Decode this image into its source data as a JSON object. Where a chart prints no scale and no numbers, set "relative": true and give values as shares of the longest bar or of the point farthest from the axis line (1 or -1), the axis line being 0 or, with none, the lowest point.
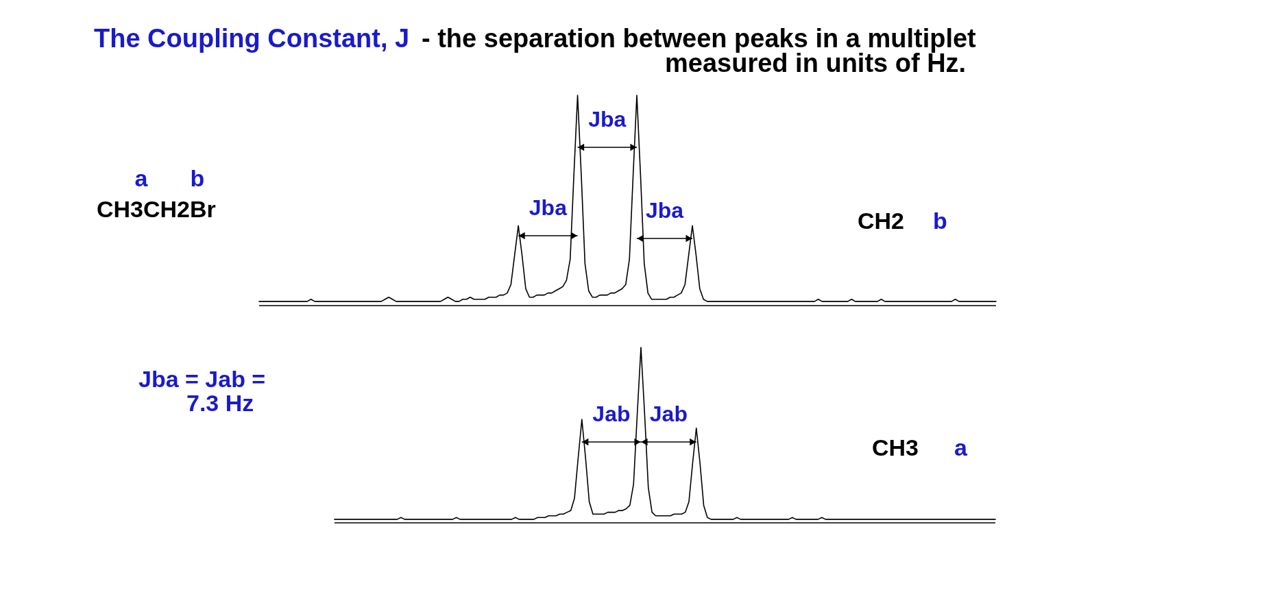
{
  "chart_data": [
    {
      "type": "line",
      "title": "The Coupling Constant, J",
      "subtitle": "- the separation between peaks in a multiplet\nmeasured in units of Hz.",
      "relative": true,
      "tick_labels": false,
      "color": "#000000",
      "categories": [
        null,
        null,
        null,
        null,
        null,
        null,
        null,
        null,
        null,
        null,
        null,
        null,
        null,
        null,
        null,
        null,
        null,
        null,
        null,
        null,
        null,
        null,
        null,
        null,
        null,
        null,
        null,
        null,
        null,
        null,
        null,
        null,
        null,
        null,
        null,
        null,
        null,
        null,
        null,
        null,
        null,
        null,
        null,
        null,
        null,
        null,
        null,
        null,
        null,
        null,
        null,
        null,
        null,
        null,
        null,
        null,
        null,
        null,
        null,
        null,
        null,
        null,
        null,
        null,
        null,
        null,
        null,
        null,
        null,
        null,
        null,
        null,
        null,
        null,
        null,
        null,
        null,
        null,
        null,
        null,
        null,
        null,
        null,
        null,
        null,
        null,
        null,
        null,
        null,
        null,
        null,
        null,
        null,
        null,
        null,
        null,
        null,
        null,
        null,
        null,
        null,
        null,
        null,
        null,
        null,
        null,
        null,
        null,
        null,
        null,
        null,
        null,
        null,
        null,
        null,
        null,
        null,
        null,
        null,
        null,
        null,
        null,
        null,
        null,
        null,
        null,
        null,
        null,
        null,
        null,
        null,
        null,
        null,
        null,
        null,
        null,
        null,
        null,
        null,
        null,
        null,
        null,
        null,
        null,
        null,
        null,
        null,
        null,
        null,
        null,
        null,
        null,
        null,
        null,
        null,
        null,
        null,
        null,
        null,
        null,
        null,
        null,
        null,
        null,
        null,
        null,
        null,
        null,
        null,
        null,
        null,
        null,
        null,
        null,
        null,
        null,
        null,
        null,
        null,
        null,
        null,
        null,
        null,
        null,
        null,
        null,
        null,
        null,
        null,
        null,
        null,
        null,
        null,
        null,
        null,
        null,
        null,
        null,
        null,
        null
      ],
      "values": [
        0.02,
        0.02,
        0.02,
        0.02,
        0.02,
        0.02,
        0.02,
        0.02,
        0.02,
        0.02,
        0.02,
        0.02,
        0.02,
        0.02,
        0.03,
        0.02,
        0.02,
        0.02,
        0.02,
        0.02,
        0.02,
        0.02,
        0.02,
        0.02,
        0.02,
        0.02,
        0.02,
        0.02,
        0.02,
        0.02,
        0.02,
        0.02,
        0.02,
        0.02,
        0.03,
        0.04,
        0.03,
        0.02,
        0.02,
        0.02,
        0.02,
        0.02,
        0.02,
        0.02,
        0.02,
        0.02,
        0.02,
        0.02,
        0.02,
        0.02,
        0.03,
        0.04,
        0.03,
        0.02,
        0.02,
        0.03,
        0.03,
        0.04,
        0.03,
        0.03,
        0.03,
        0.03,
        0.04,
        0.04,
        0.04,
        0.05,
        0.05,
        0.06,
        0.1,
        0.24,
        0.38,
        0.24,
        0.08,
        0.04,
        0.04,
        0.05,
        0.05,
        0.05,
        0.06,
        0.06,
        0.07,
        0.08,
        0.09,
        0.12,
        0.22,
        0.62,
        1,
        0.62,
        0.2,
        0.07,
        0.04,
        0.04,
        0.05,
        0.05,
        0.05,
        0.06,
        0.06,
        0.07,
        0.08,
        0.1,
        0.22,
        0.62,
        1,
        0.62,
        0.2,
        0.06,
        0.03,
        0.03,
        0.03,
        0.03,
        0.03,
        0.04,
        0.04,
        0.05,
        0.06,
        0.1,
        0.24,
        0.38,
        0.24,
        0.08,
        0.03,
        0.02,
        0.02,
        0.02,
        0.02,
        0.02,
        0.02,
        0.02,
        0.02,
        0.02,
        0.02,
        0.02,
        0.02,
        0.02,
        0.02,
        0.02,
        0.02,
        0.02,
        0.02,
        0.02,
        0.02,
        0.02,
        0.02,
        0.02,
        0.02,
        0.02,
        0.02,
        0.02,
        0.02,
        0.02,
        0.02,
        0.03,
        0.02,
        0.02,
        0.02,
        0.02,
        0.02,
        0.02,
        0.02,
        0.02,
        0.03,
        0.02,
        0.02,
        0.02,
        0.02,
        0.02,
        0.02,
        0.02,
        0.03,
        0.02,
        0.02,
        0.02,
        0.02,
        0.02,
        0.02,
        0.02,
        0.02,
        0.02,
        0.02,
        0.02,
        0.02,
        0.02,
        0.02,
        0.02,
        0.02,
        0.02,
        0.02,
        0.02,
        0.03,
        0.02,
        0.02,
        0.02,
        0.02,
        0.02,
        0.02,
        0.02,
        0.02,
        0.02,
        0.02,
        0.02
      ],
      "annotations": [
        "Jba",
        "Jba",
        "Jba",
        "a",
        "b",
        "CH3CH2Br",
        "CH2",
        "b"
      ]
    },
    {
      "type": "line",
      "relative": true,
      "tick_labels": false,
      "color": "#000000",
      "categories": [
        null,
        null,
        null,
        null,
        null,
        null,
        null,
        null,
        null,
        null,
        null,
        null,
        null,
        null,
        null,
        null,
        null,
        null,
        null,
        null,
        null,
        null,
        null,
        null,
        null,
        null,
        null,
        null,
        null,
        null,
        null,
        null,
        null,
        null,
        null,
        null,
        null,
        null,
        null,
        null,
        null,
        null,
        null,
        null,
        null,
        null,
        null,
        null,
        null,
        null,
        null,
        null,
        null,
        null,
        null,
        null,
        null,
        null,
        null,
        null,
        null,
        null,
        null,
        null,
        null,
        null,
        null,
        null,
        null,
        null,
        null,
        null,
        null,
        null,
        null,
        null,
        null,
        null,
        null,
        null,
        null,
        null,
        null,
        null,
        null,
        null,
        null,
        null,
        null,
        null,
        null,
        null,
        null,
        null,
        null,
        null,
        null,
        null,
        null,
        null,
        null,
        null,
        null,
        null,
        null,
        null,
        null,
        null,
        null,
        null,
        null,
        null,
        null,
        null,
        null,
        null,
        null,
        null,
        null,
        null,
        null,
        null,
        null,
        null,
        null,
        null,
        null,
        null,
        null,
        null,
        null,
        null,
        null,
        null,
        null,
        null,
        null,
        null,
        null,
        null,
        null,
        null,
        null,
        null,
        null,
        null,
        null,
        null,
        null,
        null,
        null,
        null,
        null,
        null,
        null,
        null,
        null,
        null,
        null,
        null,
        null,
        null,
        null,
        null,
        null,
        null,
        null,
        null,
        null,
        null,
        null,
        null,
        null,
        null,
        null,
        null,
        null,
        null,
        null,
        null
      ],
      "values": [
        0.02,
        0.02,
        0.02,
        0.02,
        0.02,
        0.02,
        0.02,
        0.02,
        0.02,
        0.02,
        0.02,
        0.02,
        0.02,
        0.02,
        0.02,
        0.02,
        0.02,
        0.02,
        0.03,
        0.02,
        0.02,
        0.02,
        0.02,
        0.02,
        0.02,
        0.02,
        0.02,
        0.02,
        0.02,
        0.02,
        0.02,
        0.02,
        0.02,
        0.03,
        0.02,
        0.02,
        0.02,
        0.02,
        0.02,
        0.02,
        0.02,
        0.02,
        0.02,
        0.02,
        0.02,
        0.02,
        0.02,
        0.02,
        0.02,
        0.03,
        0.02,
        0.02,
        0.02,
        0.02,
        0.02,
        0.03,
        0.03,
        0.03,
        0.04,
        0.04,
        0.04,
        0.05,
        0.05,
        0.06,
        0.07,
        0.14,
        0.37,
        0.59,
        0.37,
        0.12,
        0.05,
        0.05,
        0.05,
        0.05,
        0.06,
        0.06,
        0.06,
        0.07,
        0.07,
        0.08,
        0.1,
        0.22,
        0.62,
        1,
        0.62,
        0.2,
        0.06,
        0.04,
        0.04,
        0.04,
        0.04,
        0.04,
        0.05,
        0.05,
        0.05,
        0.06,
        0.12,
        0.34,
        0.54,
        0.34,
        0.1,
        0.03,
        0.02,
        0.02,
        0.02,
        0.02,
        0.02,
        0.02,
        0.02,
        0.03,
        0.02,
        0.02,
        0.02,
        0.02,
        0.02,
        0.02,
        0.02,
        0.02,
        0.02,
        0.02,
        0.02,
        0.02,
        0.02,
        0.02,
        0.03,
        0.02,
        0.02,
        0.02,
        0.02,
        0.02,
        0.02,
        0.02,
        0.03,
        0.02,
        0.02,
        0.02,
        0.02,
        0.02,
        0.02,
        0.02,
        0.02,
        0.02,
        0.02,
        0.02,
        0.02,
        0.02,
        0.02,
        0.02,
        0.02,
        0.02,
        0.02,
        0.02,
        0.02,
        0.02,
        0.02,
        0.02,
        0.02,
        0.02,
        0.02,
        0.02,
        0.02,
        0.02,
        0.02,
        0.02,
        0.02,
        0.02,
        0.02,
        0.02,
        0.02,
        0.02,
        0.02,
        0.02,
        0.02,
        0.02,
        0.02,
        0.02,
        0.02,
        0.02,
        0.02,
        0.02
      ],
      "annotations": [
        "Jab",
        "Jab",
        "Jba = Jab =",
        "7.3 Hz",
        "CH3",
        "a"
      ]
    }
  ]
}
